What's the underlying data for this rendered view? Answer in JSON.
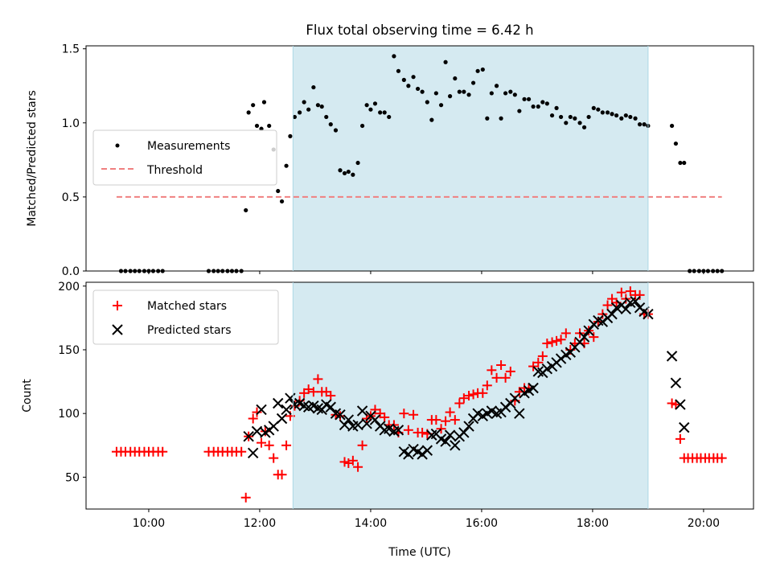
{
  "chart_data": [
    {
      "type": "scatter",
      "title": "Flux total observing time = 6.42 h",
      "xlabel": "",
      "ylabel": "Matched/Predicted stars",
      "xlim": [
        8.87,
        20.9
      ],
      "ylim": [
        0,
        1.52
      ],
      "yticks": [
        0.0,
        0.5,
        1.0,
        1.5
      ],
      "ytick_labels": [
        "0.0",
        "0.5",
        "1.0",
        "1.5"
      ],
      "xticks": [
        10,
        12,
        14,
        16,
        18,
        20
      ],
      "xtick_labels_shown": false,
      "shaded_span": [
        12.6,
        19.0
      ],
      "shaded_color": "#d5eaf1",
      "legend_position": "center-left",
      "series": [
        {
          "name": "Measurements",
          "kind": "points",
          "color": "#000000",
          "x": [
            9.5,
            9.58,
            9.67,
            9.75,
            9.83,
            9.92,
            10.0,
            10.08,
            10.17,
            10.25,
            11.08,
            11.17,
            11.25,
            11.33,
            11.42,
            11.5,
            11.58,
            11.67,
            11.75,
            11.8,
            11.88,
            11.95,
            12.03,
            12.08,
            12.17,
            12.25,
            12.33,
            12.4,
            12.48,
            12.55,
            12.63,
            12.72,
            12.8,
            12.88,
            12.97,
            13.05,
            13.12,
            13.2,
            13.28,
            13.37,
            13.45,
            13.53,
            13.6,
            13.68,
            13.77,
            13.85,
            13.93,
            14.0,
            14.08,
            14.17,
            14.25,
            14.33,
            14.42,
            14.5,
            14.6,
            14.68,
            14.77,
            14.85,
            14.93,
            15.02,
            15.1,
            15.18,
            15.27,
            15.35,
            15.43,
            15.52,
            15.6,
            15.68,
            15.77,
            15.85,
            15.93,
            16.02,
            16.1,
            16.18,
            16.27,
            16.35,
            16.43,
            16.52,
            16.6,
            16.68,
            16.77,
            16.85,
            16.93,
            17.02,
            17.1,
            17.18,
            17.27,
            17.35,
            17.43,
            17.52,
            17.6,
            17.68,
            17.77,
            17.85,
            17.93,
            18.02,
            18.1,
            18.18,
            18.27,
            18.35,
            18.43,
            18.52,
            18.6,
            18.68,
            18.77,
            18.85,
            18.93,
            19.0,
            19.43,
            19.5,
            19.58,
            19.65,
            19.75,
            19.83,
            19.92,
            20.0,
            20.08,
            20.17,
            20.25,
            20.33
          ],
          "y": [
            0,
            0,
            0,
            0,
            0,
            0,
            0,
            0,
            0,
            0,
            0,
            0,
            0,
            0,
            0,
            0,
            0,
            0,
            0.41,
            1.07,
            1.12,
            0.98,
            0.96,
            1.14,
            0.98,
            0.82,
            0.54,
            0.47,
            0.71,
            0.91,
            1.04,
            1.07,
            1.14,
            1.09,
            1.24,
            1.12,
            1.11,
            1.04,
            0.99,
            0.95,
            0.68,
            0.66,
            0.67,
            0.65,
            0.73,
            0.98,
            1.12,
            1.09,
            1.13,
            1.07,
            1.07,
            1.04,
            1.45,
            1.35,
            1.29,
            1.25,
            1.31,
            1.23,
            1.21,
            1.14,
            1.02,
            1.2,
            1.12,
            1.41,
            1.18,
            1.3,
            1.21,
            1.21,
            1.19,
            1.27,
            1.35,
            1.36,
            1.03,
            1.2,
            1.25,
            1.03,
            1.2,
            1.21,
            1.19,
            1.08,
            1.16,
            1.16,
            1.11,
            1.11,
            1.14,
            1.13,
            1.05,
            1.1,
            1.04,
            1.0,
            1.04,
            1.03,
            1.0,
            0.97,
            1.04,
            1.1,
            1.09,
            1.07,
            1.07,
            1.06,
            1.05,
            1.03,
            1.05,
            1.04,
            1.03,
            0.99,
            0.99,
            0.98,
            0.98,
            0.86,
            0.73,
            0.73,
            0,
            0,
            0,
            0,
            0,
            0,
            0,
            0
          ]
        },
        {
          "name": "Threshold",
          "kind": "dashed-line",
          "color": "#f08080",
          "x": [
            9.42,
            20.33
          ],
          "y": [
            0.5,
            0.5
          ]
        }
      ]
    },
    {
      "type": "scatter",
      "title": "",
      "xlabel": "Time (UTC)",
      "ylabel": "Count",
      "xlim": [
        8.87,
        20.9
      ],
      "ylim": [
        25,
        203
      ],
      "yticks": [
        50,
        100,
        150,
        200
      ],
      "ytick_labels": [
        "50",
        "100",
        "150",
        "200"
      ],
      "xticks": [
        10,
        12,
        14,
        16,
        18,
        20
      ],
      "xtick_labels": [
        "10:00",
        "12:00",
        "14:00",
        "16:00",
        "18:00",
        "20:00"
      ],
      "shaded_span": [
        12.6,
        19.0
      ],
      "shaded_color": "#d5eaf1",
      "legend_position": "top-left",
      "series": [
        {
          "name": "Matched stars",
          "marker": "plus",
          "color": "#ff0000",
          "x": [
            9.42,
            9.5,
            9.58,
            9.67,
            9.75,
            9.83,
            9.92,
            10.0,
            10.08,
            10.17,
            10.25,
            11.08,
            11.17,
            11.25,
            11.33,
            11.42,
            11.5,
            11.58,
            11.67,
            11.75,
            11.8,
            11.88,
            11.95,
            12.03,
            12.1,
            12.17,
            12.25,
            12.33,
            12.4,
            12.48,
            12.55,
            12.63,
            12.72,
            12.8,
            12.88,
            12.97,
            13.05,
            13.12,
            13.2,
            13.28,
            13.37,
            13.45,
            13.53,
            13.6,
            13.68,
            13.77,
            13.85,
            13.93,
            14.0,
            14.08,
            14.17,
            14.25,
            14.33,
            14.42,
            14.5,
            14.6,
            14.68,
            14.77,
            14.85,
            14.93,
            15.02,
            15.1,
            15.18,
            15.27,
            15.35,
            15.43,
            15.52,
            15.6,
            15.68,
            15.77,
            15.85,
            15.93,
            16.02,
            16.1,
            16.18,
            16.27,
            16.35,
            16.43,
            16.52,
            16.6,
            16.68,
            16.77,
            16.85,
            16.93,
            17.02,
            17.1,
            17.18,
            17.27,
            17.35,
            17.43,
            17.52,
            17.6,
            17.68,
            17.77,
            17.85,
            17.93,
            18.02,
            18.1,
            18.18,
            18.27,
            18.35,
            18.43,
            18.52,
            18.6,
            18.68,
            18.77,
            18.85,
            18.93,
            19.0,
            19.43,
            19.5,
            19.58,
            19.65,
            19.72,
            19.8,
            19.88,
            19.95,
            20.03,
            20.1,
            20.18,
            20.25,
            20.33
          ],
          "y": [
            70,
            70,
            70,
            70,
            70,
            70,
            70,
            70,
            70,
            70,
            70,
            70,
            70,
            70,
            70,
            70,
            70,
            70,
            70,
            34,
            82,
            96,
            101,
            77,
            86,
            75,
            65,
            52,
            52,
            75,
            98,
            106,
            110,
            116,
            119,
            117,
            127,
            117,
            117,
            114,
            99,
            98,
            62,
            61,
            63,
            58,
            75,
            96,
            98,
            103,
            100,
            97,
            91,
            91,
            85,
            100,
            87,
            99,
            85,
            85,
            84,
            95,
            95,
            88,
            94,
            101,
            95,
            108,
            112,
            114,
            115,
            116,
            116,
            122,
            134,
            128,
            138,
            128,
            133,
            110,
            117,
            120,
            120,
            137,
            140,
            145,
            155,
            156,
            157,
            158,
            163,
            150,
            155,
            163,
            155,
            165,
            160,
            172,
            178,
            185,
            190,
            187,
            195,
            190,
            196,
            193,
            193,
            178,
            178,
            108,
            107,
            80,
            65,
            65,
            65,
            65,
            65,
            65,
            65,
            65,
            65,
            65
          ]
        },
        {
          "name": "Predicted stars",
          "marker": "x",
          "color": "#000000",
          "x": [
            11.8,
            11.88,
            11.95,
            12.03,
            12.1,
            12.17,
            12.25,
            12.33,
            12.4,
            12.48,
            12.55,
            12.63,
            12.72,
            12.8,
            12.88,
            12.97,
            13.05,
            13.12,
            13.2,
            13.28,
            13.37,
            13.45,
            13.53,
            13.6,
            13.68,
            13.77,
            13.85,
            13.93,
            14.0,
            14.08,
            14.17,
            14.25,
            14.33,
            14.42,
            14.5,
            14.6,
            14.68,
            14.77,
            14.85,
            14.93,
            15.02,
            15.1,
            15.18,
            15.27,
            15.35,
            15.43,
            15.52,
            15.6,
            15.68,
            15.77,
            15.85,
            15.93,
            16.02,
            16.1,
            16.18,
            16.27,
            16.35,
            16.43,
            16.52,
            16.6,
            16.68,
            16.77,
            16.85,
            16.93,
            17.02,
            17.1,
            17.18,
            17.27,
            17.35,
            17.43,
            17.52,
            17.6,
            17.68,
            17.77,
            17.85,
            17.93,
            18.02,
            18.1,
            18.18,
            18.27,
            18.35,
            18.43,
            18.52,
            18.6,
            18.68,
            18.77,
            18.85,
            18.93,
            19.0,
            19.43,
            19.5,
            19.58,
            19.65
          ],
          "y": [
            82,
            69,
            86,
            103,
            85,
            87,
            90,
            108,
            96,
            103,
            112,
            107,
            108,
            106,
            105,
            106,
            104,
            103,
            107,
            105,
            100,
            99,
            91,
            95,
            90,
            91,
            102,
            92,
            98,
            95,
            90,
            87,
            88,
            86,
            87,
            70,
            68,
            72,
            70,
            68,
            71,
            83,
            84,
            80,
            78,
            83,
            75,
            82,
            85,
            90,
            96,
            100,
            98,
            100,
            102,
            100,
            101,
            105,
            108,
            112,
            100,
            116,
            118,
            120,
            133,
            132,
            135,
            137,
            140,
            143,
            146,
            148,
            152,
            156,
            160,
            165,
            170,
            173,
            172,
            175,
            178,
            183,
            185,
            182,
            187,
            188,
            183,
            180,
            178,
            145,
            124,
            107,
            89
          ]
        }
      ]
    }
  ]
}
